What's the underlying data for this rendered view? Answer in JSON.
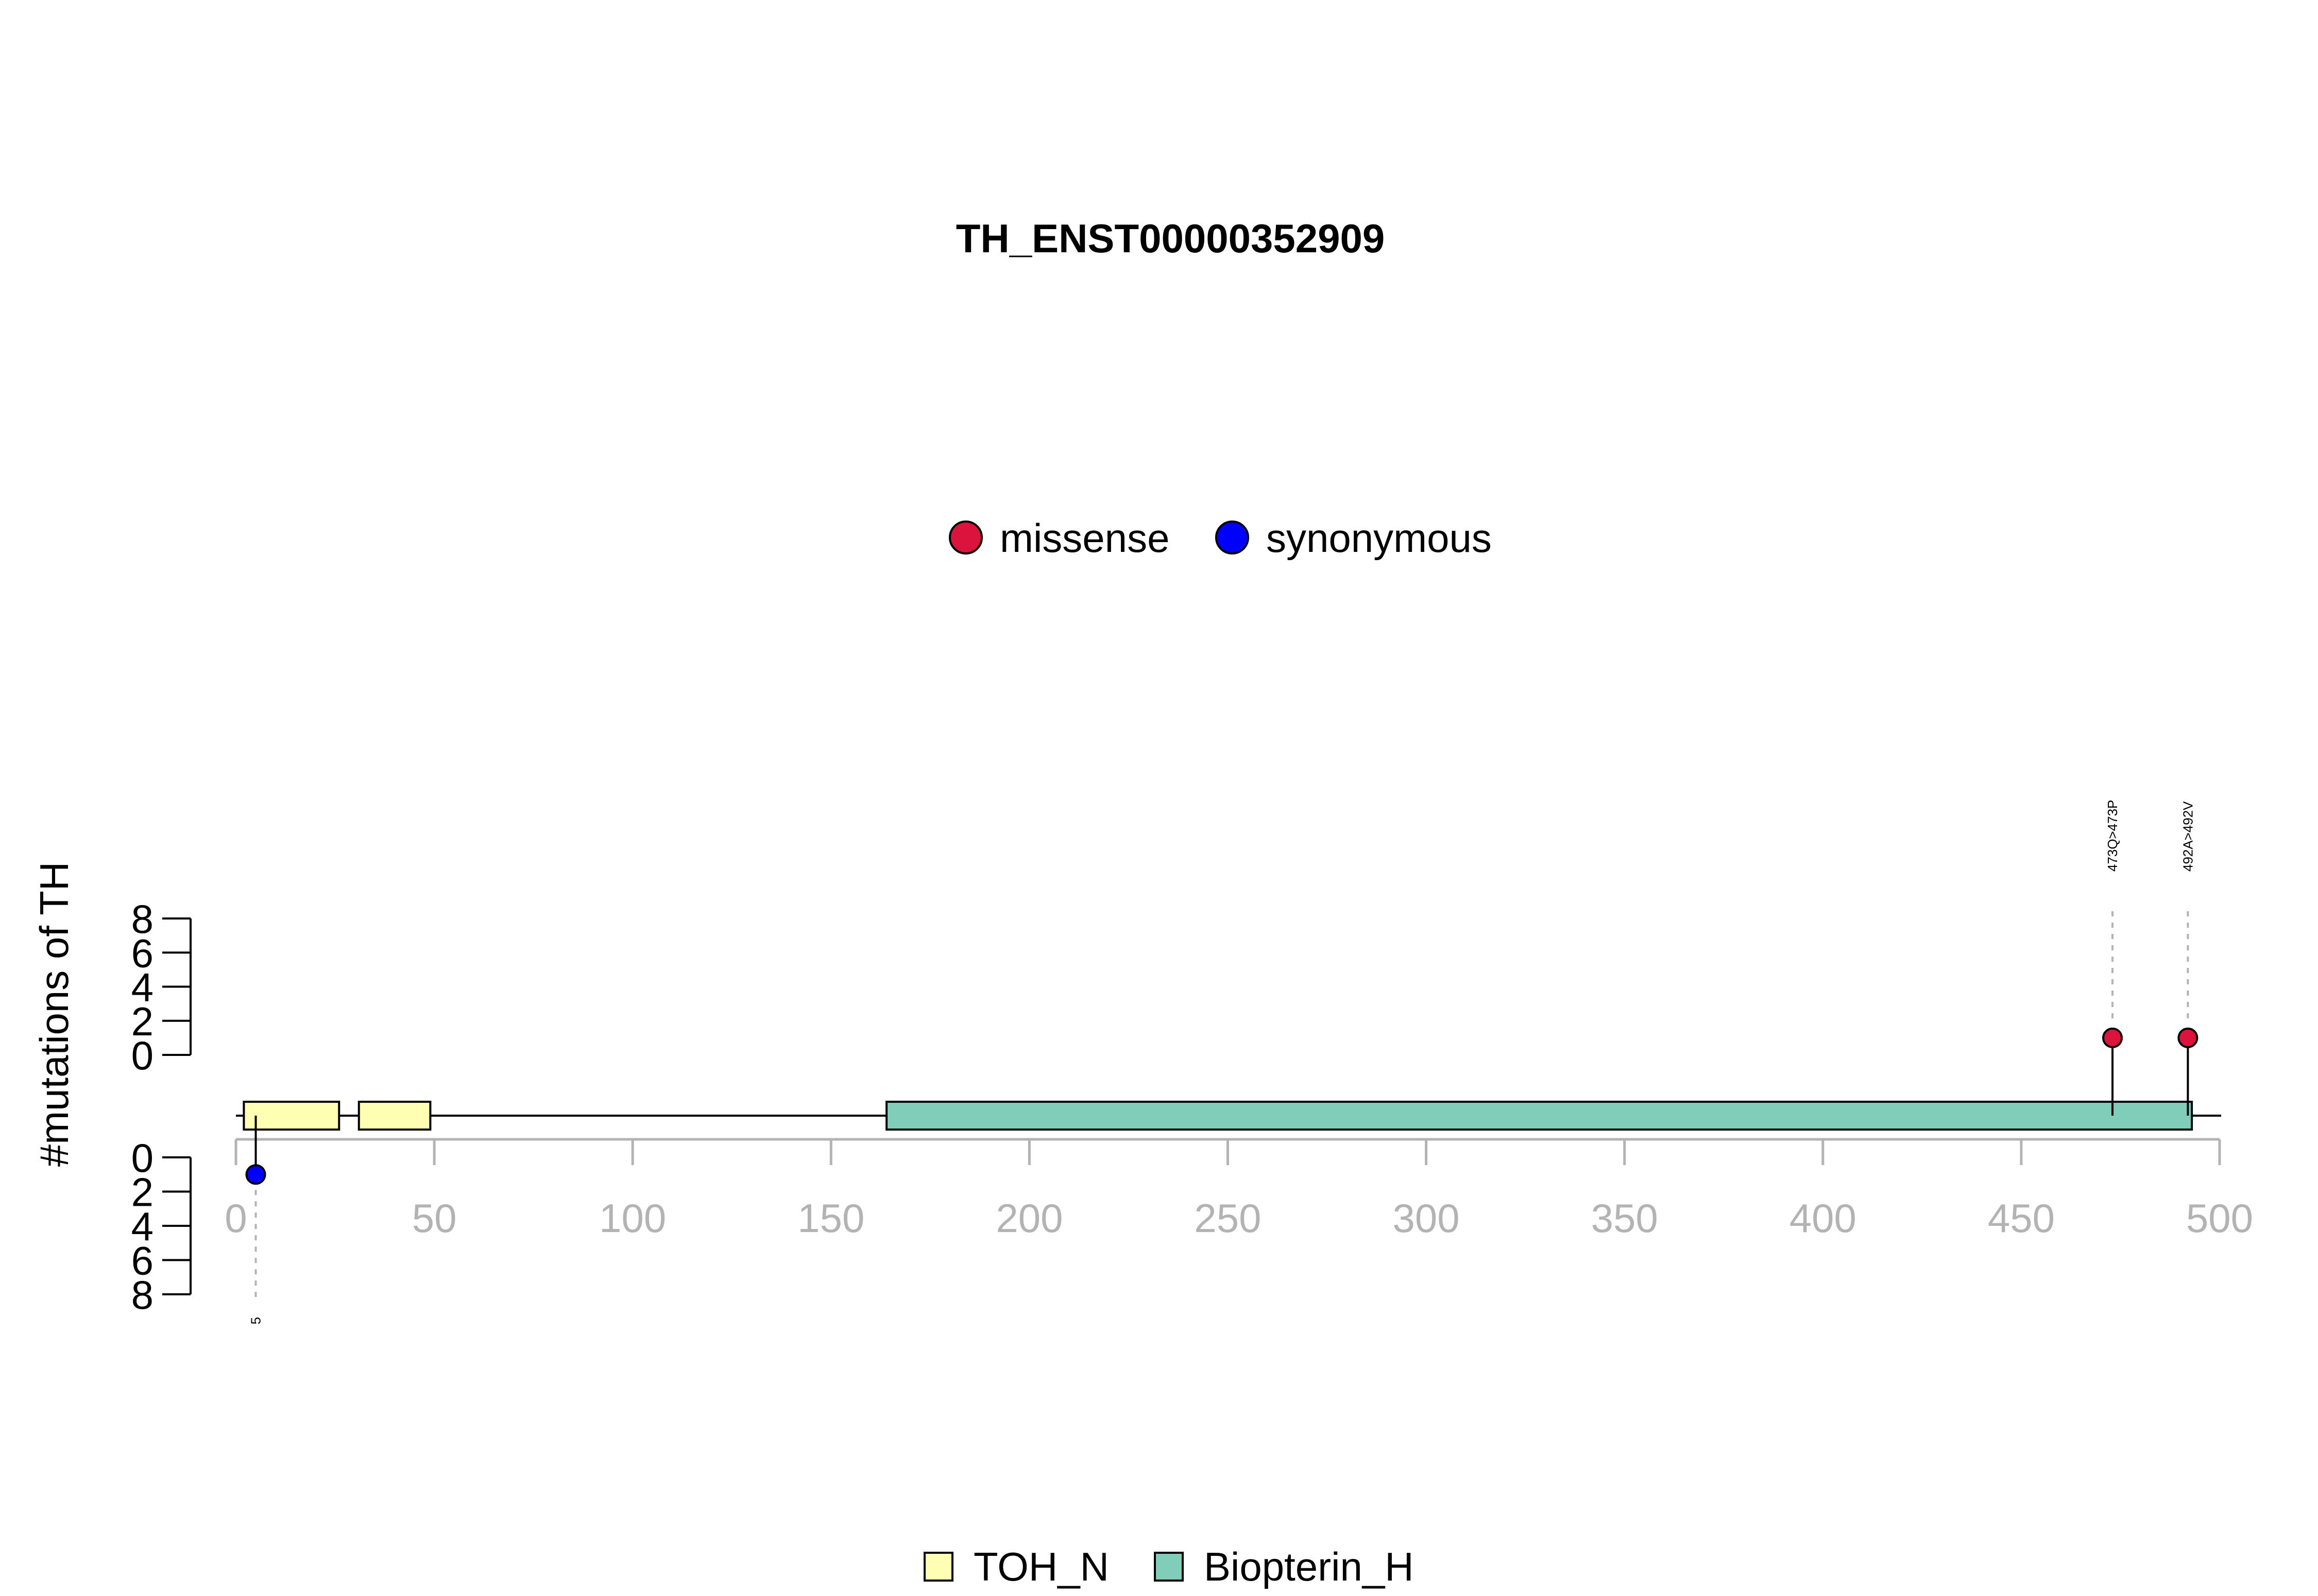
{
  "chart_data": {
    "type": "lollipop",
    "title": "TH_ENST00000352909",
    "ylabel": "#mutations of TH",
    "x_ticks": [
      0,
      50,
      100,
      150,
      200,
      250,
      300,
      350,
      400,
      450,
      500
    ],
    "xlim": [
      0,
      500
    ],
    "y_ticks": [
      0,
      2,
      4,
      6,
      8
    ],
    "ylim_upper": [
      0,
      8
    ],
    "ylim_lower": [
      0,
      8
    ],
    "mutation_legend": [
      {
        "name": "missense",
        "color": "#dc143c"
      },
      {
        "name": "synonymous",
        "color": "#0000ff"
      }
    ],
    "domain_legend": [
      {
        "name": "TOH_N",
        "color": "#ffffb3"
      },
      {
        "name": "Biopterin_H",
        "color": "#80cdb9"
      }
    ],
    "domains": [
      {
        "name": "TOH_N",
        "start": 2,
        "end": 26
      },
      {
        "name": "TOH_N",
        "start": 31,
        "end": 49
      },
      {
        "name": "Biopterin_H",
        "start": 164,
        "end": 493
      }
    ],
    "mutations": [
      {
        "position": 5,
        "label": "5",
        "type": "synonymous",
        "count": 1,
        "side": "lower"
      },
      {
        "position": 473,
        "label": "473Q>473P",
        "type": "missense",
        "count": 1,
        "side": "upper"
      },
      {
        "position": 492,
        "label": "492A>492V",
        "type": "missense",
        "count": 1,
        "side": "upper"
      }
    ]
  }
}
